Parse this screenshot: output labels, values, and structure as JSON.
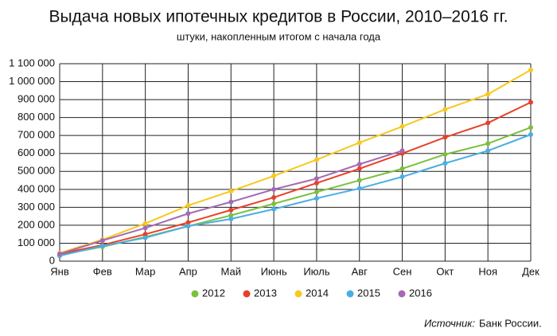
{
  "chart_data": {
    "type": "line",
    "title": "Выдача новых ипотечных кредитов в России, 2010–2016 гг.",
    "subtitle": "штуки, накопленным итогом с начала года",
    "source_label": "Источник:",
    "source": "Банк России.",
    "categories": [
      "Янв",
      "Фев",
      "Мар",
      "Апр",
      "Май",
      "Июнь",
      "Июль",
      "Авг",
      "Сен",
      "Окт",
      "Ноя",
      "Дек"
    ],
    "series": [
      {
        "name": "2012",
        "color": "#7cbf3f",
        "values": [
          35000,
          80000,
          135000,
          195000,
          255000,
          320000,
          385000,
          450000,
          515000,
          595000,
          655000,
          745000
        ]
      },
      {
        "name": "2013",
        "color": "#e8402a",
        "values": [
          40000,
          90000,
          150000,
          215000,
          285000,
          355000,
          435000,
          515000,
          600000,
          690000,
          770000,
          885000
        ]
      },
      {
        "name": "2014",
        "color": "#f8c81e",
        "values": [
          45000,
          120000,
          210000,
          310000,
          390000,
          475000,
          565000,
          660000,
          750000,
          845000,
          930000,
          1065000
        ]
      },
      {
        "name": "2015",
        "color": "#4aaee3",
        "values": [
          30000,
          85000,
          130000,
          195000,
          235000,
          290000,
          350000,
          405000,
          470000,
          545000,
          615000,
          705000
        ]
      },
      {
        "name": "2016",
        "color": "#a569b3",
        "values": [
          40000,
          115000,
          185000,
          265000,
          330000,
          400000,
          460000,
          540000,
          615000,
          null,
          null,
          null
        ]
      }
    ],
    "ylim": [
      0,
      1100000
    ],
    "yticks": [
      0,
      {
        "value": 100000,
        "label": "100 000"
      },
      {
        "value": 200000,
        "label": "200 000"
      },
      {
        "value": 300000,
        "label": "300 000"
      },
      {
        "value": 400000,
        "label": "400 000"
      },
      {
        "value": 500000,
        "label": "500 000"
      },
      {
        "value": 600000,
        "label": "600 000"
      },
      {
        "value": 700000,
        "label": "700 000"
      },
      {
        "value": 800000,
        "label": "800 000"
      },
      {
        "value": 900000,
        "label": "900 000"
      },
      {
        "value": 1000000,
        "label": "1 000 000"
      },
      {
        "value": 1100000,
        "label": "1 100 000"
      }
    ],
    "grid": true,
    "legend": "bottom"
  }
}
